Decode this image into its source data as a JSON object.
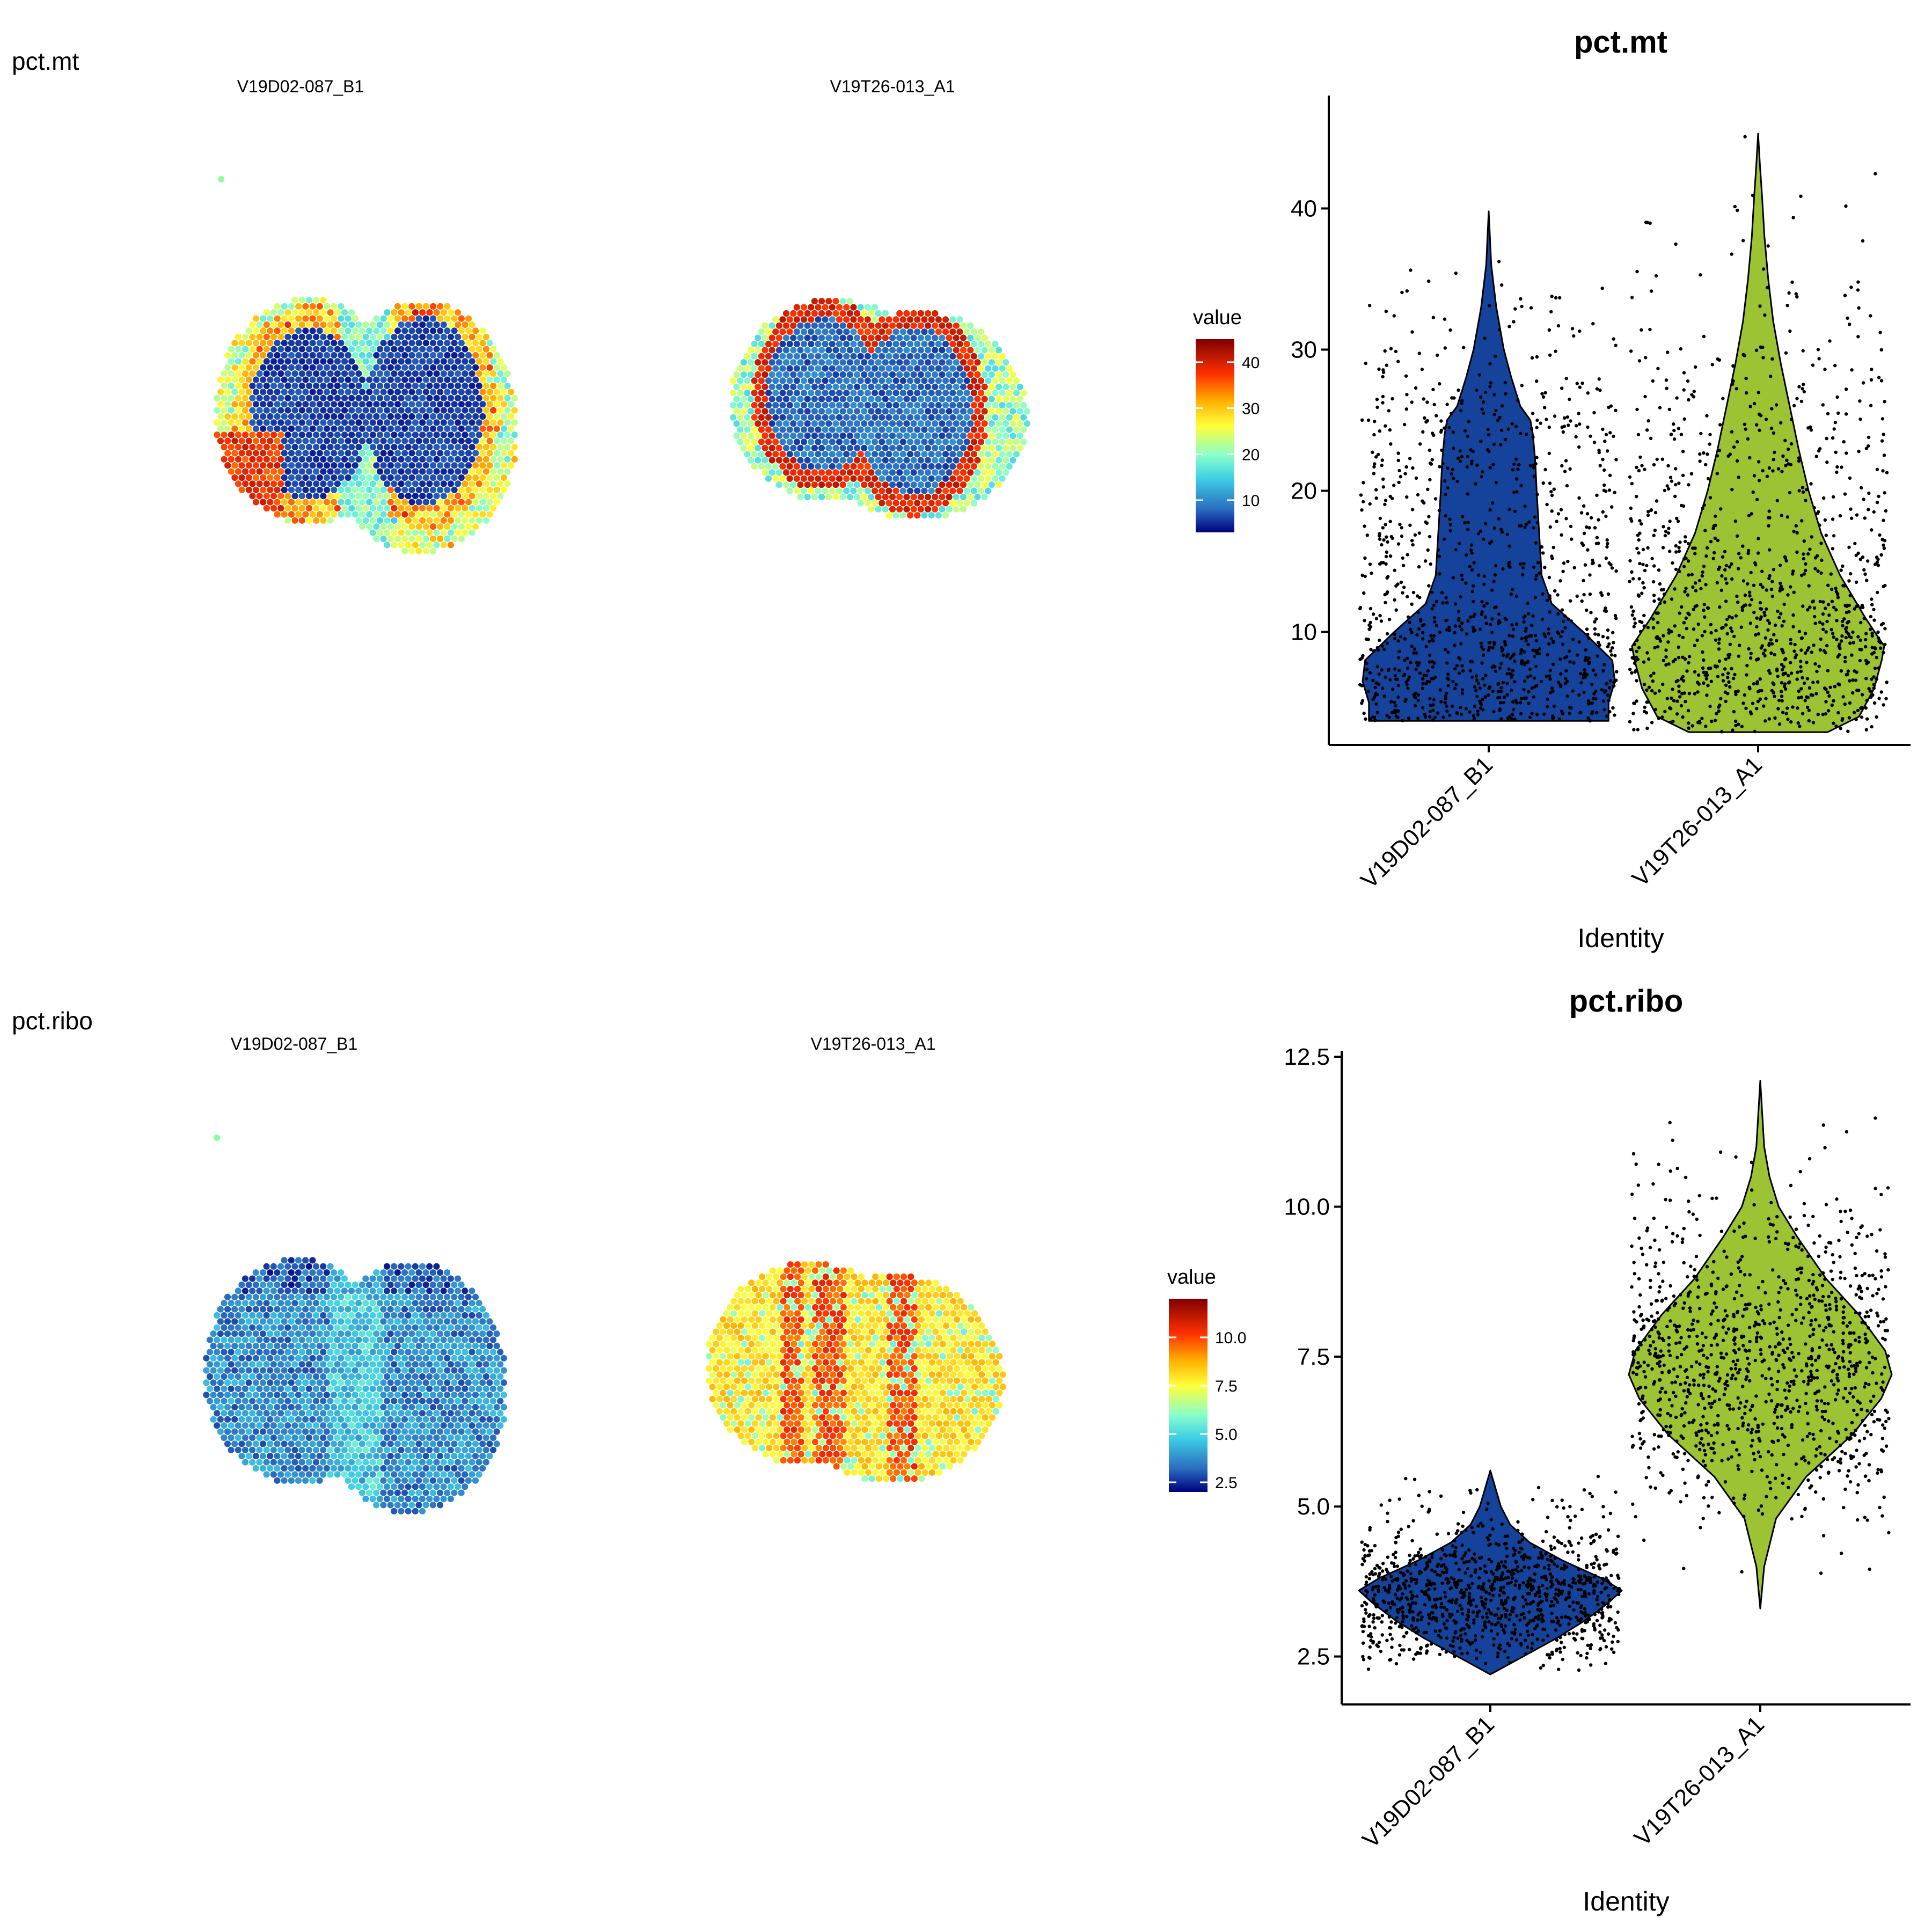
{
  "rows": [
    {
      "feature": "pct.mt",
      "spatial_titles": [
        "V19D02-087_B1",
        "V19T26-013_A1"
      ],
      "legend": {
        "title": "value",
        "ticks": [
          "10",
          "20",
          "30",
          "40"
        ]
      },
      "violin": {
        "title": "pct.mt",
        "y_ticks": [
          "10",
          "20",
          "30",
          "40"
        ],
        "x_ticks": [
          "V19D02-087_B1",
          "V19T26-013_A1"
        ],
        "x_label": "Identity"
      }
    },
    {
      "feature": "pct.ribo",
      "spatial_titles": [
        "V19D02-087_B1",
        "V19T26-013_A1"
      ],
      "legend": {
        "title": "value",
        "ticks": [
          "2.5",
          "5.0",
          "7.5",
          "10.0"
        ]
      },
      "violin": {
        "title": "pct.ribo",
        "y_ticks": [
          "2.5",
          "5.0",
          "7.5",
          "10.0",
          "12.5"
        ],
        "x_ticks": [
          "V19D02-087_B1",
          "V19T26-013_A1"
        ],
        "x_label": "Identity"
      }
    }
  ],
  "chart_data": [
    {
      "type": "violin",
      "title": "pct.mt",
      "xlabel": "Identity",
      "ylabel": "",
      "ylim": [
        2,
        48
      ],
      "categories": [
        "V19D02-087_B1",
        "V19T26-013_A1"
      ],
      "colors": [
        "#15439c",
        "#9bc334"
      ],
      "series": [
        {
          "category": "V19D02-087_B1",
          "min": 3.7,
          "max": 39.8,
          "density": [
            [
              3.7,
              0.95
            ],
            [
              5,
              0.95
            ],
            [
              6.5,
              1
            ],
            [
              8,
              0.98
            ],
            [
              10,
              0.75
            ],
            [
              12,
              0.5
            ],
            [
              14,
              0.42
            ],
            [
              17,
              0.4
            ],
            [
              20,
              0.38
            ],
            [
              22,
              0.37
            ],
            [
              24,
              0.35
            ],
            [
              25,
              0.33
            ],
            [
              26,
              0.25
            ],
            [
              28,
              0.18
            ],
            [
              30,
              0.12
            ],
            [
              33,
              0.06
            ],
            [
              36,
              0.02
            ],
            [
              39.8,
              0
            ]
          ]
        },
        {
          "category": "V19T26-013_A1",
          "min": 2.9,
          "max": 45.3,
          "density": [
            [
              2.9,
              0.55
            ],
            [
              4,
              0.8
            ],
            [
              6,
              0.92
            ],
            [
              8,
              0.98
            ],
            [
              9,
              1
            ],
            [
              11,
              0.85
            ],
            [
              14,
              0.65
            ],
            [
              17,
              0.5
            ],
            [
              20,
              0.4
            ],
            [
              23,
              0.32
            ],
            [
              26,
              0.25
            ],
            [
              29,
              0.18
            ],
            [
              32,
              0.12
            ],
            [
              35,
              0.08
            ],
            [
              38,
              0.05
            ],
            [
              41,
              0.03
            ],
            [
              43,
              0.015
            ],
            [
              45.3,
              0
            ]
          ]
        }
      ]
    },
    {
      "type": "violin",
      "title": "pct.ribo",
      "xlabel": "Identity",
      "ylabel": "",
      "ylim": [
        1.7,
        12.6
      ],
      "categories": [
        "V19D02-087_B1",
        "V19T26-013_A1"
      ],
      "colors": [
        "#15439c",
        "#9bc334"
      ],
      "series": [
        {
          "category": "V19D02-087_B1",
          "min": 2.2,
          "max": 5.6,
          "density": [
            [
              2.2,
              0
            ],
            [
              2.5,
              0.25
            ],
            [
              2.8,
              0.5
            ],
            [
              3.1,
              0.72
            ],
            [
              3.4,
              0.9
            ],
            [
              3.6,
              1
            ],
            [
              3.8,
              0.85
            ],
            [
              4.1,
              0.55
            ],
            [
              4.4,
              0.3
            ],
            [
              4.7,
              0.15
            ],
            [
              5,
              0.08
            ],
            [
              5.3,
              0.04
            ],
            [
              5.6,
              0
            ]
          ]
        },
        {
          "category": "V19T26-013_A1",
          "min": 3.3,
          "max": 12.1,
          "density": [
            [
              3.3,
              0
            ],
            [
              4,
              0.03
            ],
            [
              4.8,
              0.12
            ],
            [
              5.5,
              0.35
            ],
            [
              6.2,
              0.7
            ],
            [
              6.8,
              0.92
            ],
            [
              7.2,
              1
            ],
            [
              7.6,
              0.95
            ],
            [
              8.2,
              0.75
            ],
            [
              8.8,
              0.5
            ],
            [
              9.5,
              0.28
            ],
            [
              10,
              0.14
            ],
            [
              10.5,
              0.07
            ],
            [
              11,
              0.03
            ],
            [
              12.1,
              0
            ]
          ]
        }
      ]
    }
  ],
  "spatial_data": [
    {
      "feature": "pct.mt",
      "color_scale": [
        "#00007f",
        "#2a6cc0",
        "#3fd0e6",
        "#8affc8",
        "#ffff3a",
        "#ffb000",
        "#ff3000",
        "#7f0000"
      ],
      "value_range": [
        3,
        45
      ],
      "slides": [
        {
          "sample": "V19D02-087_B1",
          "pattern": "two blue lobes with yellow/red rim"
        },
        {
          "sample": "V19T26-013_A1",
          "pattern": "two blue lobes with red ridges"
        }
      ]
    },
    {
      "feature": "pct.ribo",
      "color_scale": [
        "#00007f",
        "#2a6cc0",
        "#3fd0e6",
        "#8affc8",
        "#ffff3a",
        "#ffb000",
        "#ff3000",
        "#7f0000"
      ],
      "value_range": [
        2,
        12
      ],
      "slides": [
        {
          "sample": "V19D02-087_B1",
          "pattern": "mostly blue/cyan"
        },
        {
          "sample": "V19T26-013_A1",
          "pattern": "yellow/orange with red streaks"
        }
      ]
    }
  ]
}
